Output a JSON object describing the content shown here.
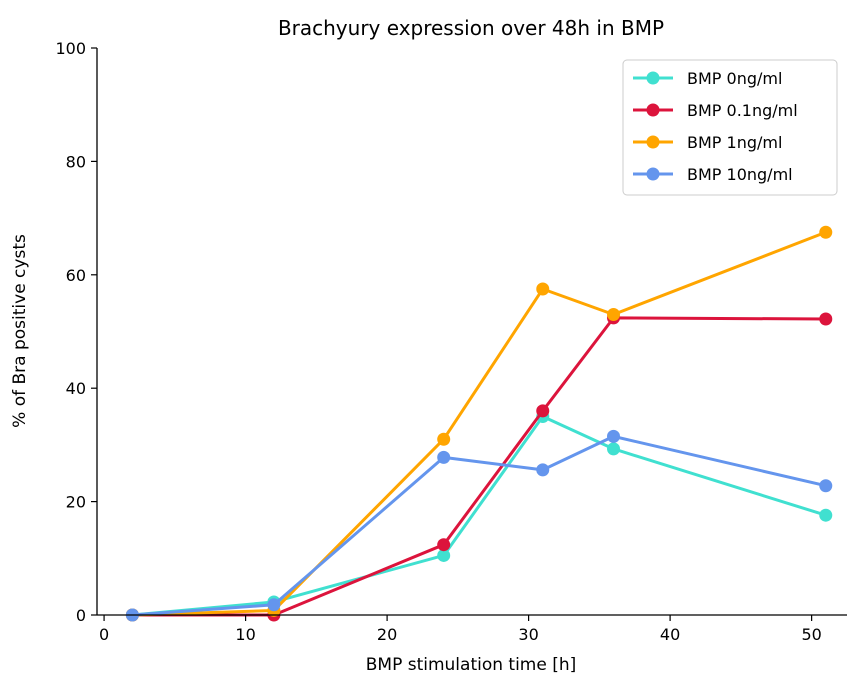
{
  "chart_data": {
    "type": "line",
    "title": "Brachyury expression over 48h in BMP",
    "xlabel": "BMP stimulation time [h]",
    "ylabel": "% of Bra positive cysts",
    "xlim": [
      -0.5,
      52.5
    ],
    "ylim": [
      0,
      100
    ],
    "xticks": [
      0,
      10,
      20,
      30,
      40,
      50
    ],
    "yticks": [
      0,
      20,
      40,
      60,
      80,
      100
    ],
    "grid": false,
    "legend_position": "top-right",
    "x": [
      2,
      12,
      24,
      31,
      36,
      51
    ],
    "series": [
      {
        "name": "BMP 0ng/ml",
        "color": "#40e0d0",
        "values": [
          0,
          2.3,
          10.5,
          35.0,
          29.3,
          17.6
        ]
      },
      {
        "name": "BMP 0.1ng/ml",
        "color": "#dc143c",
        "values": [
          0,
          0,
          12.4,
          36.0,
          52.4,
          52.2
        ]
      },
      {
        "name": "BMP 1ng/ml",
        "color": "#ffa500",
        "values": [
          0,
          0.8,
          31.0,
          57.5,
          53.0,
          67.5
        ]
      },
      {
        "name": "BMP 10ng/ml",
        "color": "#6495ed",
        "values": [
          0,
          1.8,
          27.8,
          25.6,
          31.5,
          22.8
        ]
      }
    ]
  }
}
